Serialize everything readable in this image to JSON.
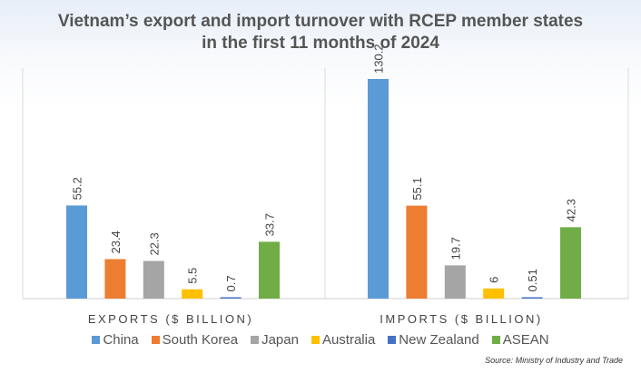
{
  "chart_data": {
    "type": "bar",
    "title": "Vietnam’s export and import turnover with RCEP member states in the first 11 months of 2024",
    "title_lines": [
      "Vietnam’s export and import turnover with RCEP member states",
      "in the first 11 months of 2024"
    ],
    "categories": [
      "EXPORTS ($ BILLION)",
      "IMPORTS ($ BILLION)"
    ],
    "series": [
      {
        "name": "China",
        "color": "#5b9bd5",
        "values": [
          55.2,
          130.2
        ]
      },
      {
        "name": "South Korea",
        "color": "#ed7d31",
        "values": [
          23.4,
          55.1
        ]
      },
      {
        "name": "Japan",
        "color": "#a5a5a5",
        "values": [
          22.3,
          19.7
        ]
      },
      {
        "name": "Australia",
        "color": "#ffc000",
        "values": [
          5.5,
          6
        ]
      },
      {
        "name": "New Zealand",
        "color": "#4472c4",
        "values": [
          0.7,
          0.51
        ]
      },
      {
        "name": "ASEAN",
        "color": "#70ad47",
        "values": [
          33.7,
          42.3
        ]
      }
    ],
    "ylim": [
      0,
      130.2
    ],
    "grid": false,
    "legend": "bottom",
    "source": "Source: Ministry of Industry and Trade"
  }
}
